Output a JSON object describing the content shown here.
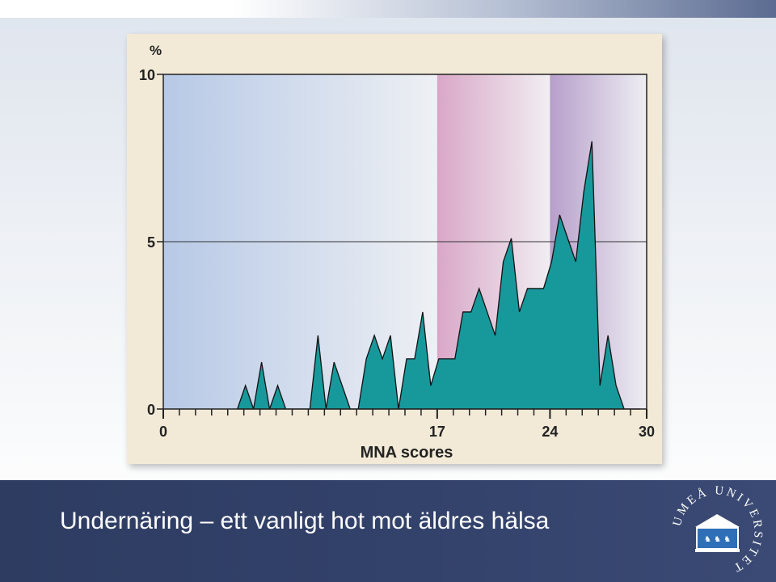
{
  "slide": {
    "title": "Undernäring – ett vanligt hot mot äldres hälsa",
    "logo_text": "UMEÅ UNIVERSITET"
  },
  "colors": {
    "area_fill": "#17999c",
    "zone_low": "#b7c9e6",
    "zone_mid": "#d9a7c8",
    "zone_high": "#b79fcb",
    "card_bg": "#f2ead7",
    "footer": "#2e3c62"
  },
  "chart_data": {
    "type": "area",
    "title": "",
    "xlabel": "MNA scores",
    "ylabel": "%",
    "xlim": [
      0,
      30
    ],
    "ylim": [
      0,
      10
    ],
    "x_ticks": [
      {
        "value": 0,
        "label": "0"
      },
      {
        "value": 17,
        "label": "17"
      },
      {
        "value": 24,
        "label": "24"
      },
      {
        "value": 30,
        "label": "30"
      }
    ],
    "y_ticks": [
      {
        "value": 0,
        "label": "0"
      },
      {
        "value": 5,
        "label": "5"
      },
      {
        "value": 10,
        "label": "10"
      }
    ],
    "zones": [
      {
        "from": 0,
        "to": 17,
        "color": "#b7c9e6"
      },
      {
        "from": 17,
        "to": 24,
        "color": "#d9a7c8"
      },
      {
        "from": 24,
        "to": 30,
        "color": "#b79fcb"
      }
    ],
    "gridlines_y": [
      5
    ],
    "x": [
      4.6,
      5.1,
      5.6,
      6.1,
      6.6,
      7.1,
      7.6,
      9.1,
      9.6,
      10.1,
      10.6,
      11.1,
      11.6,
      12.1,
      12.6,
      13.1,
      13.6,
      14.1,
      14.6,
      15.1,
      15.6,
      16.1,
      16.6,
      17.1,
      17.6,
      18.1,
      18.6,
      19.1,
      19.6,
      20.1,
      20.6,
      21.1,
      21.6,
      22.1,
      22.6,
      23.1,
      23.6,
      24.1,
      24.6,
      25.1,
      25.6,
      26.1,
      26.6,
      27.1,
      27.6,
      28.1,
      28.6,
      29.1,
      29.6
    ],
    "values": [
      0,
      0.7,
      0,
      1.4,
      0,
      0.7,
      0,
      0,
      2.2,
      0,
      1.4,
      0.7,
      0,
      0,
      1.5,
      2.2,
      1.5,
      2.2,
      0,
      1.5,
      1.5,
      2.9,
      0.7,
      1.5,
      1.5,
      1.5,
      2.9,
      2.9,
      3.6,
      2.9,
      2.2,
      4.4,
      5.1,
      2.9,
      3.6,
      3.6,
      3.6,
      4.4,
      5.8,
      5.1,
      4.4,
      6.5,
      8,
      0.7,
      2.2,
      0.7,
      0,
      0,
      0
    ]
  }
}
